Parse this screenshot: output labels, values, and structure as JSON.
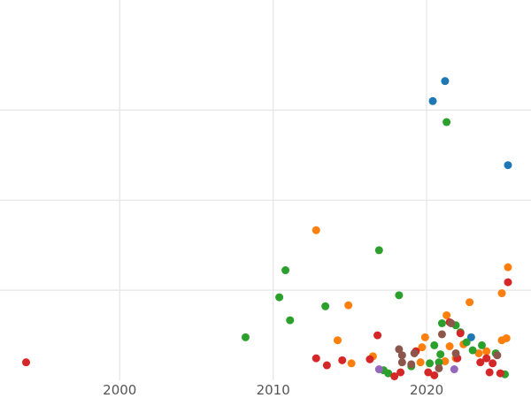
{
  "chart_data": {
    "type": "scatter",
    "title": "",
    "xlabel": "",
    "ylabel": "",
    "xlim": [
      1992.2,
      2026.8
    ],
    "ylim": [
      -10,
      370
    ],
    "grid": true,
    "xticks": [
      2000,
      2010,
      2020
    ],
    "xtick_labels": [
      "2000",
      "2010",
      "2020"
    ],
    "yticks": [
      80,
      170,
      260
    ],
    "colors": {
      "blue": "#1f77b4",
      "orange": "#ff7f0e",
      "green": "#2ca02c",
      "red": "#d62728",
      "purple": "#9467bd",
      "brown": "#8c564b"
    },
    "series": [
      {
        "color": "#1f77b4",
        "points": [
          [
            2021.2,
            289
          ],
          [
            2020.4,
            269
          ],
          [
            2025.3,
            205
          ],
          [
            2022.9,
            33
          ]
        ]
      },
      {
        "color": "#ff7f0e",
        "points": [
          [
            2012.8,
            140
          ],
          [
            2025.3,
            103
          ],
          [
            2022.8,
            68
          ],
          [
            2024.9,
            77
          ],
          [
            2014.9,
            65
          ],
          [
            2014.2,
            30
          ],
          [
            2016.5,
            14
          ],
          [
            2015.1,
            7
          ],
          [
            2019.9,
            33
          ],
          [
            2021.3,
            55
          ],
          [
            2019.7,
            23
          ],
          [
            2021.5,
            24
          ],
          [
            2022.4,
            26
          ],
          [
            2023.4,
            17
          ],
          [
            2025.2,
            32
          ],
          [
            2024.9,
            30
          ],
          [
            2021.2,
            9
          ],
          [
            2019.6,
            8
          ],
          [
            2023.9,
            19
          ],
          [
            2021.9,
            12
          ]
        ]
      },
      {
        "color": "#2ca02c",
        "points": [
          [
            2021.3,
            248
          ],
          [
            2016.9,
            120
          ],
          [
            2010.8,
            100
          ],
          [
            2010.4,
            73
          ],
          [
            2013.4,
            64
          ],
          [
            2011.1,
            50
          ],
          [
            2008.2,
            33
          ],
          [
            2018.2,
            75
          ],
          [
            2021.9,
            45
          ],
          [
            2022.6,
            28
          ],
          [
            2021.0,
            47
          ],
          [
            2020.5,
            25
          ],
          [
            2020.9,
            16
          ],
          [
            2022.2,
            38
          ],
          [
            2023.0,
            20
          ],
          [
            2023.6,
            25
          ],
          [
            2024.5,
            17
          ],
          [
            2020.2,
            7
          ],
          [
            2020.8,
            8
          ],
          [
            2019.0,
            4
          ],
          [
            2017.2,
            0
          ],
          [
            2017.5,
            -3
          ],
          [
            2025.1,
            -4
          ]
        ]
      },
      {
        "color": "#d62728",
        "points": [
          [
            2025.3,
            88
          ],
          [
            2016.8,
            35
          ],
          [
            2021.5,
            48
          ],
          [
            2022.2,
            37
          ],
          [
            2012.8,
            12
          ],
          [
            2013.5,
            5
          ],
          [
            2014.5,
            10
          ],
          [
            2016.3,
            11
          ],
          [
            2018.3,
            -2
          ],
          [
            2017.9,
            -6
          ],
          [
            2019.3,
            19
          ],
          [
            2020.1,
            -2
          ],
          [
            2020.5,
            -5
          ],
          [
            2022.0,
            12
          ],
          [
            2023.5,
            8
          ],
          [
            2023.9,
            12
          ],
          [
            2024.3,
            7
          ],
          [
            2024.1,
            -2
          ],
          [
            2024.8,
            -3
          ],
          [
            1993.9,
            8
          ]
        ]
      },
      {
        "color": "#9467bd",
        "points": [
          [
            2016.9,
            1
          ],
          [
            2021.8,
            1
          ]
        ]
      },
      {
        "color": "#8c564b",
        "points": [
          [
            2021.6,
            47
          ],
          [
            2021.0,
            36
          ],
          [
            2018.2,
            21
          ],
          [
            2018.4,
            15
          ],
          [
            2019.2,
            17
          ],
          [
            2018.4,
            8
          ],
          [
            2019.0,
            6
          ],
          [
            2020.8,
            2
          ],
          [
            2021.9,
            17
          ],
          [
            2024.6,
            15
          ]
        ]
      }
    ]
  }
}
